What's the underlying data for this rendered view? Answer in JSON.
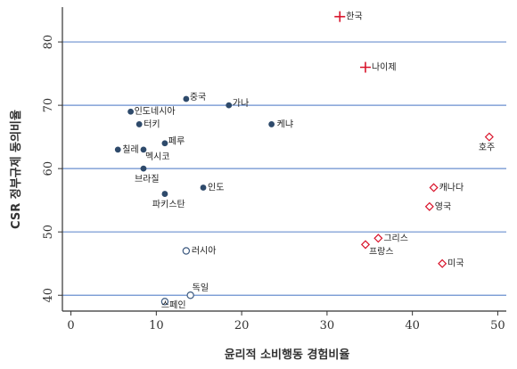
{
  "chart_data": {
    "type": "scatter",
    "xlabel": "윤리적 소비행동 경험비율",
    "ylabel": "CSR 정부규제 동의비율",
    "xlim": [
      -1,
      51
    ],
    "ylim": [
      37.5,
      85.5
    ],
    "xticks": [
      0,
      10,
      20,
      30,
      40,
      50
    ],
    "yticks": [
      40,
      50,
      60,
      70,
      80
    ],
    "grid": "horizontal",
    "colors": {
      "filled": "#2e4a6b",
      "plus": "#d9142b",
      "diamond": "#d9142b",
      "hollow": "#3d5a80",
      "gridline": "#6a8fcf"
    },
    "groups": [
      {
        "marker": "filled-circle",
        "points": [
          {
            "label": "중국",
            "x": 13.5,
            "y": 71
          },
          {
            "label": "가나",
            "x": 18.5,
            "y": 70
          },
          {
            "label": "인도네시아",
            "x": 7.0,
            "y": 69
          },
          {
            "label": "케냐",
            "x": 23.5,
            "y": 67
          },
          {
            "label": "터키",
            "x": 8.0,
            "y": 67
          },
          {
            "label": "페루",
            "x": 11.0,
            "y": 64
          },
          {
            "label": "칠레",
            "x": 5.5,
            "y": 63
          },
          {
            "label": "멕시코",
            "x": 8.5,
            "y": 63
          },
          {
            "label": "브라질",
            "x": 8.5,
            "y": 60
          },
          {
            "label": "인도",
            "x": 15.5,
            "y": 57
          },
          {
            "label": "파키스탄",
            "x": 11.0,
            "y": 56
          }
        ]
      },
      {
        "marker": "plus",
        "points": [
          {
            "label": "한국",
            "x": 31.5,
            "y": 84
          },
          {
            "label": "나이제",
            "x": 34.5,
            "y": 76
          }
        ]
      },
      {
        "marker": "diamond",
        "points": [
          {
            "label": "호주",
            "x": 49.0,
            "y": 65
          },
          {
            "label": "캐나다",
            "x": 42.5,
            "y": 57
          },
          {
            "label": "영국",
            "x": 42.0,
            "y": 54
          },
          {
            "label": "그리스",
            "x": 36.0,
            "y": 49
          },
          {
            "label": "프랑스",
            "x": 34.5,
            "y": 48
          },
          {
            "label": "미국",
            "x": 43.5,
            "y": 45
          }
        ]
      },
      {
        "marker": "hollow-circle",
        "points": [
          {
            "label": "러시아",
            "x": 13.5,
            "y": 47
          },
          {
            "label": "독일",
            "x": 14.0,
            "y": 40
          },
          {
            "label": "스페인",
            "x": 11.0,
            "y": 39
          }
        ]
      }
    ]
  }
}
